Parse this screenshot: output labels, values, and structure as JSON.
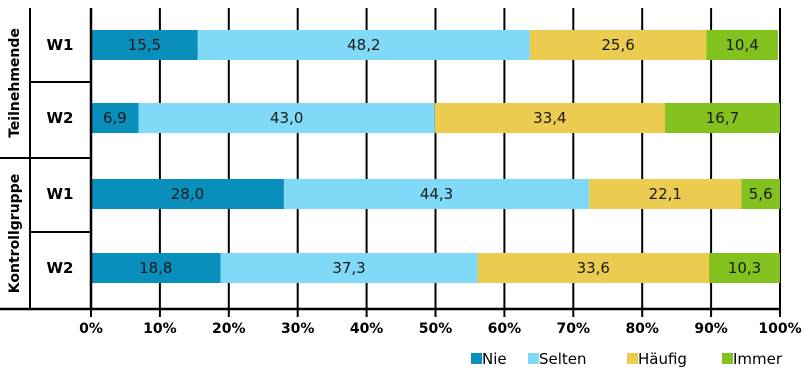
{
  "chart_data": {
    "type": "bar",
    "orientation": "horizontal",
    "stacked": true,
    "xlim": [
      0,
      100
    ],
    "x_ticks": [
      "0%",
      "10%",
      "20%",
      "30%",
      "40%",
      "50%",
      "60%",
      "70%",
      "80%",
      "90%",
      "100%"
    ],
    "groups": [
      {
        "label": "Teilnehmende",
        "categories": [
          "W1",
          "W2"
        ]
      },
      {
        "label": "Kontrollgruppe",
        "categories": [
          "W1",
          "W2"
        ]
      }
    ],
    "categories": [
      "W1",
      "W2",
      "W1",
      "W2"
    ],
    "series": [
      {
        "name": "Nie",
        "color": "#0a8fbd",
        "values": [
          15.5,
          6.9,
          28.0,
          18.8
        ],
        "labels": [
          "15,5",
          "6,9",
          "28,0",
          "18,8"
        ]
      },
      {
        "name": "Selten",
        "color": "#7fd9f7",
        "values": [
          48.2,
          43.0,
          44.3,
          37.3
        ],
        "labels": [
          "48,2",
          "43,0",
          "44,3",
          "37,3"
        ]
      },
      {
        "name": "Häufig",
        "color": "#ebcb50",
        "values": [
          25.6,
          33.4,
          22.1,
          33.6
        ],
        "labels": [
          "25,6",
          "33,4",
          "22,1",
          "33,6"
        ]
      },
      {
        "name": "Immer",
        "color": "#83c11f",
        "values": [
          10.4,
          16.7,
          5.6,
          10.3
        ],
        "labels": [
          "10,4",
          "16,7",
          "5,6",
          "10,3"
        ]
      }
    ],
    "legend_position": "bottom-right",
    "grid": true
  }
}
